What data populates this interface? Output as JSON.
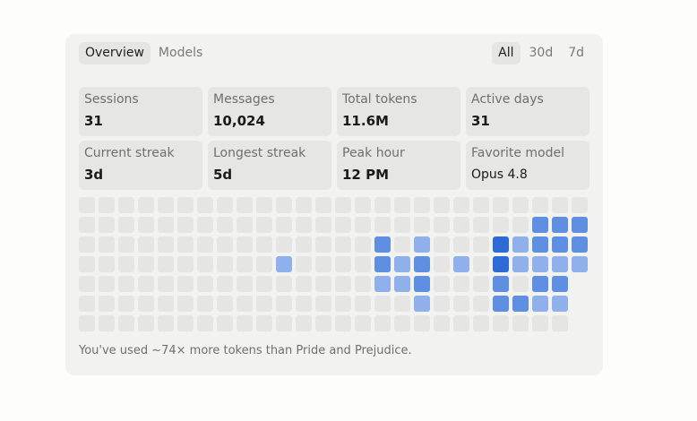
{
  "tabs": [
    {
      "label": "Overview",
      "active": true
    },
    {
      "label": "Models",
      "active": false
    }
  ],
  "ranges": [
    {
      "label": "All",
      "active": true
    },
    {
      "label": "30d",
      "active": false
    },
    {
      "label": "7d",
      "active": false
    }
  ],
  "stats": [
    {
      "label": "Sessions",
      "value": "31"
    },
    {
      "label": "Messages",
      "value": "10,024"
    },
    {
      "label": "Total tokens",
      "value": "11.6M"
    },
    {
      "label": "Active days",
      "value": "31"
    },
    {
      "label": "Current streak",
      "value": "3d"
    },
    {
      "label": "Longest streak",
      "value": "5d"
    },
    {
      "label": "Peak hour",
      "value": "12 PM"
    },
    {
      "label": "Favorite model",
      "value": "Opus 4.8"
    }
  ],
  "heatmap": {
    "colors": {
      "empty": "#e5e5e4",
      "l1": "#8fb0ea",
      "l2": "#5f8fe0",
      "l3": "#2e6ad6"
    },
    "grid": [
      [
        0,
        0,
        0,
        0,
        0,
        0,
        0,
        0,
        0,
        0,
        0,
        0,
        0,
        0,
        0,
        0,
        0,
        0,
        0,
        0,
        0,
        0,
        0,
        0,
        0,
        0
      ],
      [
        0,
        0,
        0,
        0,
        0,
        0,
        0,
        0,
        0,
        0,
        0,
        0,
        0,
        0,
        0,
        0,
        0,
        0,
        0,
        0,
        0,
        0,
        0,
        2,
        2,
        2
      ],
      [
        0,
        0,
        0,
        0,
        0,
        0,
        0,
        0,
        0,
        0,
        0,
        0,
        0,
        0,
        0,
        2,
        0,
        1,
        0,
        0,
        0,
        3,
        1,
        2,
        2,
        2
      ],
      [
        0,
        0,
        0,
        0,
        0,
        0,
        0,
        0,
        0,
        0,
        1,
        0,
        0,
        0,
        0,
        2,
        1,
        2,
        0,
        1,
        0,
        3,
        1,
        1,
        1,
        1
      ],
      [
        0,
        0,
        0,
        0,
        0,
        0,
        0,
        0,
        0,
        0,
        0,
        0,
        0,
        0,
        0,
        1,
        1,
        2,
        0,
        0,
        0,
        2,
        0,
        2,
        2,
        -1
      ],
      [
        0,
        0,
        0,
        0,
        0,
        0,
        0,
        0,
        0,
        0,
        0,
        0,
        0,
        0,
        0,
        0,
        0,
        1,
        0,
        0,
        0,
        2,
        2,
        1,
        1,
        -1
      ],
      [
        0,
        0,
        0,
        0,
        0,
        0,
        0,
        0,
        0,
        0,
        0,
        0,
        0,
        0,
        0,
        0,
        0,
        0,
        0,
        0,
        0,
        0,
        0,
        0,
        0,
        -1
      ]
    ]
  },
  "footer": "You've used ~74× more tokens than Pride and Prejudice."
}
